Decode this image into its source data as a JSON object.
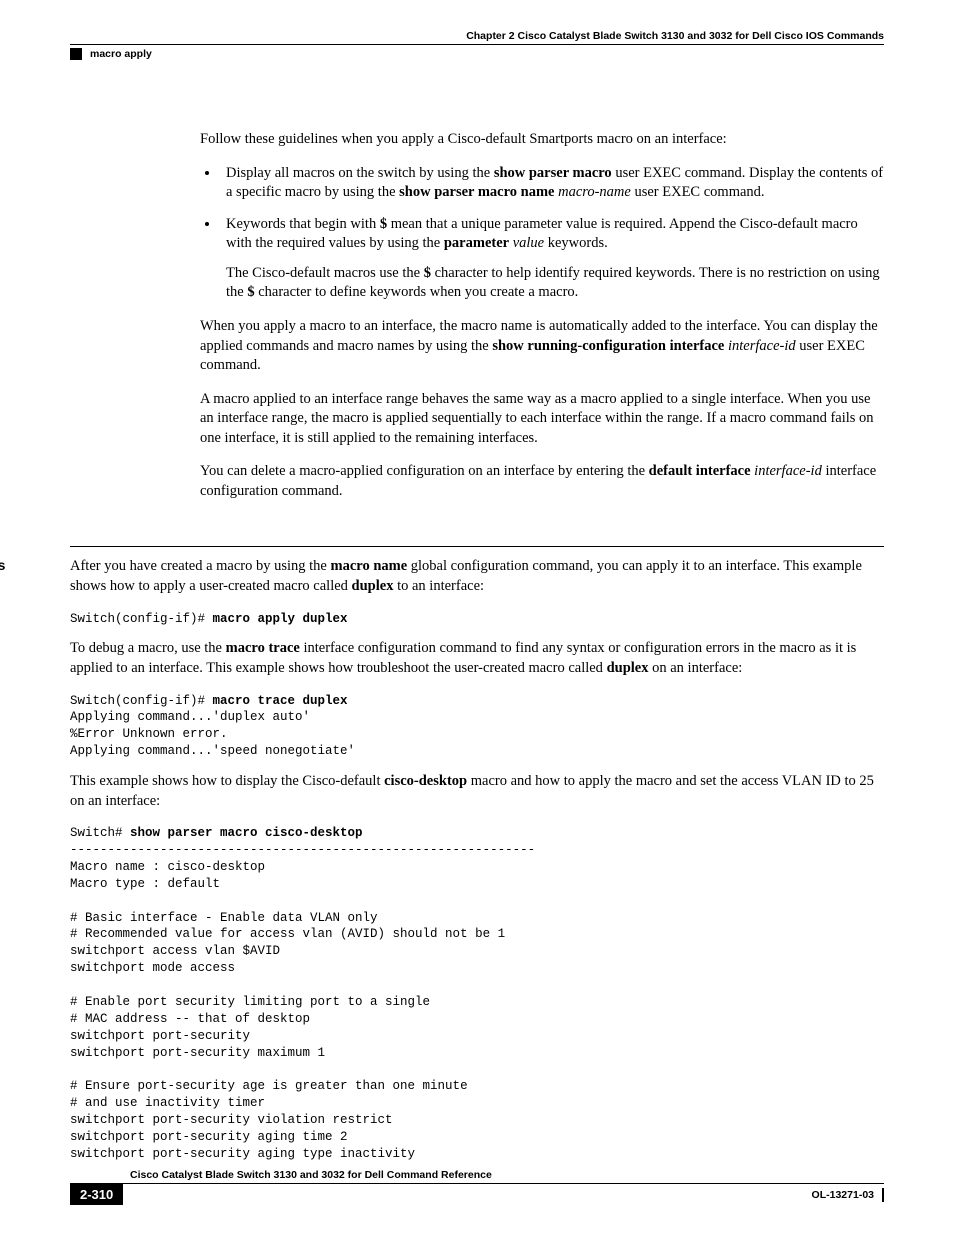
{
  "header": {
    "chapter": "Chapter 2      Cisco Catalyst Blade Switch 3130 and 3032 for Dell Cisco IOS Commands",
    "topic": "macro apply"
  },
  "body": {
    "intro": "Follow these guidelines when you apply a Cisco-default Smartports macro on an interface:",
    "bullet1_pre": "Display all macros on the switch by using the ",
    "bullet1_b1": "show parser macro",
    "bullet1_mid": " user EXEC command. Display the contents of a specific macro by using the ",
    "bullet1_b2": "show parser macro name",
    "bullet1_sp": " ",
    "bullet1_i": "macro-name",
    "bullet1_end": " user EXEC command.",
    "bullet2_pre": "Keywords that begin with ",
    "bullet2_b1": "$",
    "bullet2_mid": " mean that a unique parameter value is required. Append the Cisco-default macro with the required values by using the ",
    "bullet2_b2": "parameter",
    "bullet2_sp": " ",
    "bullet2_i": "value",
    "bullet2_end": " keywords.",
    "bullet2_sub_pre": "The Cisco-default macros use the ",
    "bullet2_sub_b1": "$",
    "bullet2_sub_mid": " character to help identify required keywords. There is no restriction on using the ",
    "bullet2_sub_b2": "$",
    "bullet2_sub_end": " character to define keywords when you create a macro.",
    "para3_pre": "When you apply a macro to an interface, the macro name is automatically added to the interface. You can display the applied commands and macro names by using the ",
    "para3_b": "show running-configuration interface",
    "para3_sp": " ",
    "para3_i": "interface-id",
    "para3_end": " user EXEC command.",
    "para4": "A macro applied to an interface range behaves the same way as a macro applied to a single interface. When you use an interface range, the macro is applied sequentially to each interface within the range. If a macro command fails on one interface, it is still applied to the remaining interfaces.",
    "para5_pre": "You can delete a macro-applied configuration on an interface by entering the ",
    "para5_b": "default interface",
    "para5_sp": " ",
    "para5_i": "interface-id",
    "para5_end": " interface configuration command."
  },
  "examples": {
    "label": "Examples",
    "p1_pre": "After you have created a macro by using the ",
    "p1_b1": "macro name",
    "p1_mid": " global configuration command, you can apply it to an interface. This example shows how to apply a user-created macro called ",
    "p1_b2": "duplex",
    "p1_end": " to an interface:",
    "code1_plain": "Switch(config-if)# ",
    "code1_bold": "macro apply duplex",
    "p2_pre": "To debug a macro, use the ",
    "p2_b1": "macro trace",
    "p2_mid": " interface configuration command to find any syntax or configuration errors in the macro as it is applied to an interface. This example shows how troubleshoot the user-created macro called ",
    "p2_b2": "duplex",
    "p2_end": " on an interface:",
    "code2_plain1": "Switch(config-if)# ",
    "code2_bold": "macro trace duplex",
    "code2_rest": "\nApplying command...'duplex auto'\n%Error Unknown error.\nApplying command...'speed nonegotiate'",
    "p3_pre": "This example shows how to display the Cisco-default ",
    "p3_b": "cisco-desktop",
    "p3_end": " macro and how to apply the macro and set the access VLAN ID to 25 on an interface:",
    "code3_plain1": "Switch# ",
    "code3_bold": "show parser macro cisco-desktop",
    "code3_rest": "\n--------------------------------------------------------------\nMacro name : cisco-desktop\nMacro type : default\n\n# Basic interface - Enable data VLAN only\n# Recommended value for access vlan (AVID) should not be 1\nswitchport access vlan $AVID\nswitchport mode access\n\n# Enable port security limiting port to a single\n# MAC address -- that of desktop\nswitchport port-security\nswitchport port-security maximum 1\n\n# Ensure port-security age is greater than one minute\n# and use inactivity timer\nswitchport port-security violation restrict\nswitchport port-security aging time 2\nswitchport port-security aging type inactivity"
  },
  "footer": {
    "title": "Cisco Catalyst Blade Switch 3130 and 3032 for Dell Command Reference",
    "page": "2-310",
    "docid": "OL-13271-03"
  }
}
